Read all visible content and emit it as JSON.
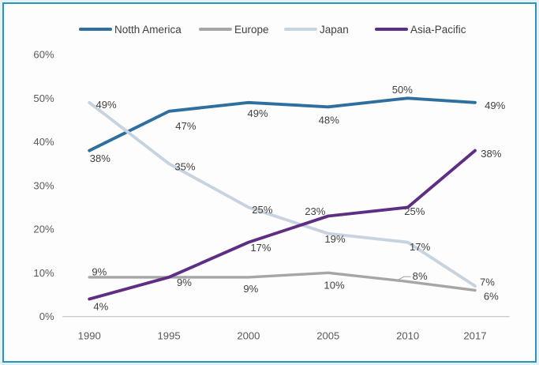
{
  "frame": {
    "border_color": "#2f93b5"
  },
  "chart_data": {
    "type": "line",
    "title": "",
    "xlabel": "",
    "ylabel": "",
    "categories": [
      "1990",
      "1995",
      "2000",
      "2005",
      "2010",
      "2017"
    ],
    "series": [
      {
        "name": "Notth America",
        "color": "#2f6f9f",
        "values": [
          38,
          47,
          49,
          48,
          50,
          49
        ]
      },
      {
        "name": "Europe",
        "color": "#a6a6a6",
        "values": [
          9,
          9,
          9,
          10,
          8,
          6
        ]
      },
      {
        "name": "Japan",
        "color": "#c8d3e0",
        "values": [
          49,
          35,
          25,
          19,
          17,
          7
        ]
      },
      {
        "name": "Asia-Pacific",
        "color": "#5e2d84",
        "values": [
          4,
          9,
          17,
          23,
          25,
          38
        ]
      }
    ],
    "ylim": [
      0,
      60
    ],
    "yticks": [
      "0%",
      "10%",
      "20%",
      "30%",
      "40%",
      "50%",
      "60%"
    ],
    "grid": false,
    "legend_position": "top",
    "axis_line_color": "#cbcbcb",
    "tick_text_color": "#595959",
    "data_label_color": "#3f3f3f",
    "data_labels": {
      "format": "{v}%",
      "hidden": [
        [],
        [
          1
        ],
        [],
        []
      ]
    }
  }
}
